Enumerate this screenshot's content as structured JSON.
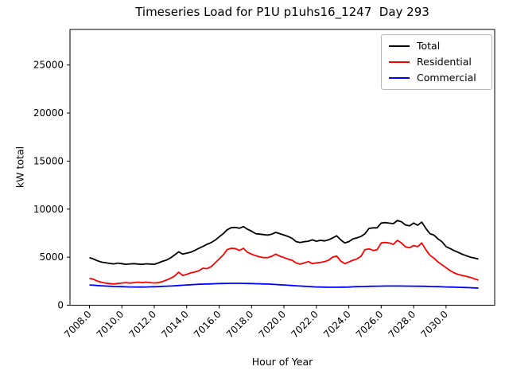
{
  "chart_data": {
    "type": "line",
    "title": "Timeseries Load for P1U p1uhs16_1247  Day 293",
    "xlabel": "Hour of Year",
    "ylabel": "kW total",
    "grid": false,
    "legend_position": "upper right",
    "xlim": [
      7006.8,
      7033.0
    ],
    "ylim": [
      0,
      28700
    ],
    "xticks": [
      {
        "value": 7008,
        "label": "7008.0"
      },
      {
        "value": 7010,
        "label": "7010.0"
      },
      {
        "value": 7012,
        "label": "7012.0"
      },
      {
        "value": 7014,
        "label": "7014.0"
      },
      {
        "value": 7016,
        "label": "7016.0"
      },
      {
        "value": 7018,
        "label": "7018.0"
      },
      {
        "value": 7020,
        "label": "7020.0"
      },
      {
        "value": 7022,
        "label": "7022.0"
      },
      {
        "value": 7024,
        "label": "7024.0"
      },
      {
        "value": 7026,
        "label": "7026.0"
      },
      {
        "value": 7028,
        "label": "7028.0"
      },
      {
        "value": 7030,
        "label": "7030.0"
      }
    ],
    "yticks": [
      {
        "value": 0,
        "label": "0"
      },
      {
        "value": 5000,
        "label": "5000"
      },
      {
        "value": 10000,
        "label": "10000"
      },
      {
        "value": 15000,
        "label": "15000"
      },
      {
        "value": 20000,
        "label": "20000"
      },
      {
        "value": 25000,
        "label": "25000"
      }
    ],
    "x": [
      7008,
      7008.25,
      7008.5,
      7008.75,
      7009,
      7009.25,
      7009.5,
      7009.75,
      7010,
      7010.25,
      7010.5,
      7010.75,
      7011,
      7011.25,
      7011.5,
      7011.75,
      7012,
      7012.25,
      7012.5,
      7012.75,
      7013,
      7013.25,
      7013.5,
      7013.75,
      7014,
      7014.25,
      7014.5,
      7014.75,
      7015,
      7015.25,
      7015.5,
      7015.75,
      7016,
      7016.25,
      7016.5,
      7016.75,
      7017,
      7017.25,
      7017.5,
      7017.75,
      7018,
      7018.25,
      7018.5,
      7018.75,
      7019,
      7019.25,
      7019.5,
      7019.75,
      7020,
      7020.25,
      7020.5,
      7020.75,
      7021,
      7021.25,
      7021.5,
      7021.75,
      7022,
      7022.25,
      7022.5,
      7022.75,
      7023,
      7023.25,
      7023.5,
      7023.75,
      7024,
      7024.25,
      7024.5,
      7024.75,
      7025,
      7025.25,
      7025.5,
      7025.75,
      7026,
      7026.25,
      7026.5,
      7026.75,
      7027,
      7027.25,
      7027.5,
      7027.75,
      7028,
      7028.25,
      7028.5,
      7028.75,
      7029,
      7029.25,
      7029.5,
      7029.75,
      7030,
      7030.25,
      7030.5,
      7030.75,
      7031,
      7031.25,
      7031.5,
      7031.75,
      7032
    ],
    "series": [
      {
        "name": "Total",
        "color": "#000000",
        "values": [
          4950,
          4800,
          4620,
          4480,
          4420,
          4350,
          4300,
          4380,
          4320,
          4260,
          4300,
          4320,
          4280,
          4250,
          4310,
          4280,
          4260,
          4400,
          4560,
          4700,
          4920,
          5230,
          5560,
          5320,
          5420,
          5520,
          5700,
          5920,
          6110,
          6340,
          6510,
          6760,
          7110,
          7440,
          7850,
          8070,
          8100,
          8010,
          8180,
          7900,
          7700,
          7450,
          7400,
          7350,
          7300,
          7400,
          7580,
          7450,
          7300,
          7160,
          6970,
          6620,
          6530,
          6610,
          6660,
          6800,
          6660,
          6750,
          6690,
          6800,
          7000,
          7220,
          6800,
          6480,
          6620,
          6890,
          7010,
          7160,
          7440,
          7990,
          8050,
          8050,
          8550,
          8600,
          8540,
          8490,
          8820,
          8680,
          8350,
          8270,
          8550,
          8320,
          8650,
          8000,
          7450,
          7300,
          6900,
          6600,
          6100,
          5900,
          5680,
          5500,
          5300,
          5150,
          5000,
          4900,
          4800
        ]
      },
      {
        "name": "Residential",
        "color": "#ff0000",
        "values": [
          2800,
          2700,
          2500,
          2380,
          2300,
          2250,
          2210,
          2260,
          2310,
          2350,
          2300,
          2350,
          2400,
          2350,
          2400,
          2350,
          2310,
          2340,
          2460,
          2620,
          2800,
          3030,
          3440,
          3100,
          3210,
          3360,
          3460,
          3580,
          3850,
          3800,
          4000,
          4400,
          4800,
          5230,
          5790,
          5920,
          5900,
          5700,
          5920,
          5500,
          5320,
          5150,
          5040,
          4950,
          4950,
          5100,
          5320,
          5100,
          4950,
          4800,
          4680,
          4400,
          4270,
          4400,
          4540,
          4330,
          4400,
          4460,
          4540,
          4680,
          5000,
          5120,
          4600,
          4320,
          4500,
          4680,
          4820,
          5090,
          5780,
          5870,
          5700,
          5780,
          6480,
          6530,
          6480,
          6340,
          6750,
          6480,
          6060,
          5980,
          6200,
          6100,
          6480,
          5780,
          5200,
          4900,
          4500,
          4200,
          3900,
          3600,
          3360,
          3200,
          3100,
          3000,
          2900,
          2750,
          2610
        ]
      },
      {
        "name": "Commercial",
        "color": "#0000ff",
        "values": [
          2100,
          2080,
          2050,
          2020,
          2000,
          1975,
          1950,
          1940,
          1930,
          1915,
          1900,
          1895,
          1890,
          1890,
          1900,
          1910,
          1920,
          1940,
          1960,
          1980,
          2000,
          2025,
          2050,
          2075,
          2100,
          2125,
          2150,
          2175,
          2195,
          2210,
          2220,
          2235,
          2250,
          2260,
          2270,
          2275,
          2280,
          2278,
          2270,
          2260,
          2250,
          2240,
          2230,
          2215,
          2200,
          2175,
          2150,
          2125,
          2100,
          2075,
          2050,
          2025,
          2000,
          1975,
          1950,
          1925,
          1900,
          1890,
          1880,
          1875,
          1870,
          1872,
          1878,
          1884,
          1890,
          1910,
          1930,
          1940,
          1950,
          1960,
          1970,
          1980,
          1990,
          1995,
          2000,
          2000,
          2000,
          1995,
          1990,
          1985,
          1980,
          1975,
          1970,
          1960,
          1950,
          1940,
          1930,
          1915,
          1900,
          1890,
          1880,
          1865,
          1850,
          1835,
          1820,
          1800,
          1780
        ]
      }
    ]
  }
}
